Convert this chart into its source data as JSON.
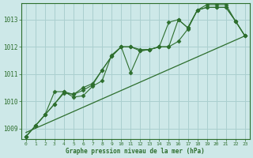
{
  "xlabel": "Graphe pression niveau de la mer (hPa)",
  "background_color": "#cde8e8",
  "grid_color": "#aacfcf",
  "line_color": "#2d6e2d",
  "x_ticks": [
    0,
    1,
    2,
    3,
    4,
    5,
    6,
    7,
    8,
    9,
    10,
    11,
    12,
    13,
    14,
    15,
    16,
    17,
    18,
    19,
    20,
    21,
    22,
    23
  ],
  "y_ticks": [
    1009,
    1010,
    1011,
    1012,
    1013
  ],
  "ylim": [
    1008.6,
    1013.6
  ],
  "xlim": [
    -0.5,
    23.5
  ],
  "series1": [
    1008.7,
    1009.1,
    1009.5,
    1009.9,
    1010.3,
    1010.25,
    1010.4,
    1010.6,
    1011.15,
    1011.65,
    1012.0,
    1012.0,
    1011.85,
    1011.9,
    1012.0,
    1012.9,
    1013.0,
    1012.7,
    1013.35,
    1013.45,
    1013.45,
    1013.45,
    1012.95,
    1012.4
  ],
  "series2": [
    1008.7,
    1009.1,
    1009.5,
    1009.9,
    1010.35,
    1010.15,
    1010.2,
    1010.55,
    1010.75,
    1011.7,
    1012.0,
    1012.0,
    1011.9,
    1011.9,
    1012.0,
    1012.0,
    1013.0,
    1012.7,
    1013.35,
    1013.45,
    1013.45,
    1013.45,
    1012.95,
    1012.4
  ],
  "series3": [
    1008.7,
    1009.1,
    1009.5,
    1010.35,
    1010.35,
    1010.25,
    1010.5,
    1010.65,
    1011.15,
    1011.65,
    1012.0,
    1011.05,
    1011.85,
    1011.9,
    1012.0,
    1012.0,
    1012.2,
    1012.65,
    1013.35,
    1013.55,
    1013.55,
    1013.55,
    1012.95,
    1012.4
  ],
  "trend_x": [
    0,
    23
  ],
  "trend_y": [
    1008.85,
    1012.4
  ]
}
